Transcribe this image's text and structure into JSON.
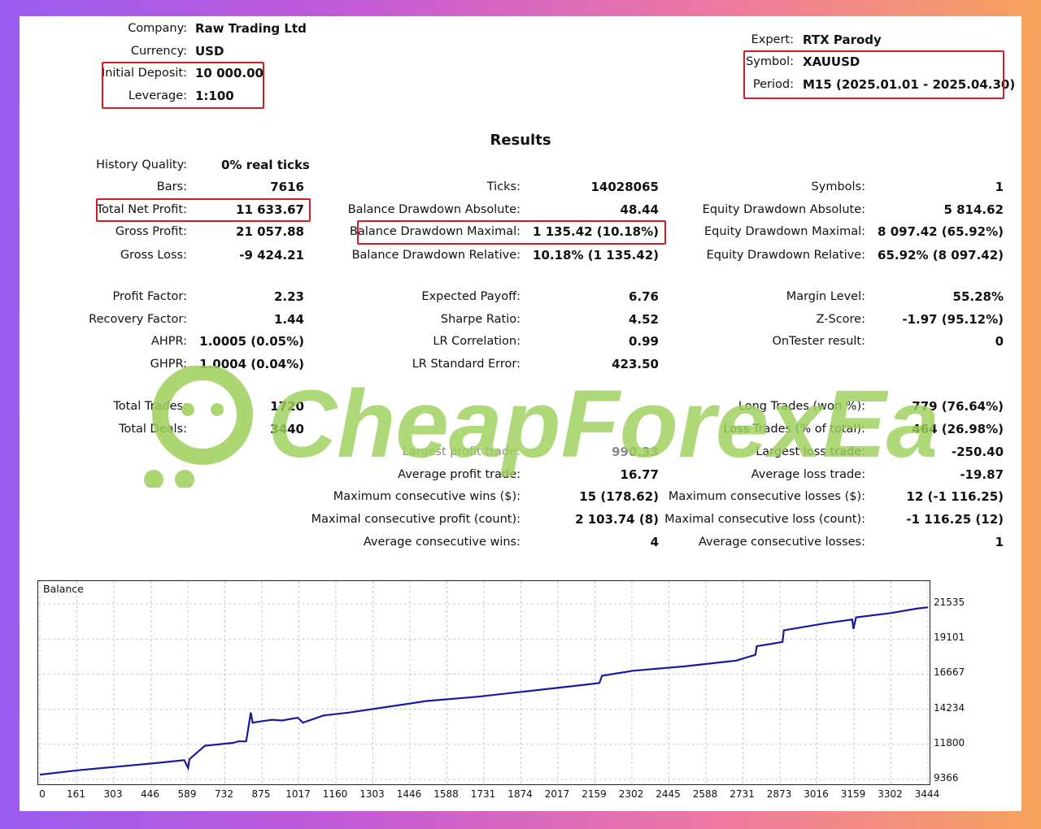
{
  "header": {
    "company_label": "Company:",
    "company": "Raw Trading Ltd",
    "currency_label": "Currency:",
    "currency": "USD",
    "deposit_label": "Initial Deposit:",
    "deposit": "10 000.00",
    "leverage_label": "Leverage:",
    "leverage": "1:100",
    "expert_label": "Expert:",
    "expert": "RTX Parody",
    "symbol_label": "Symbol:",
    "symbol": "XAUUSD",
    "period_label": "Period:",
    "period": "M15 (2025.01.01 - 2025.04.30)"
  },
  "results_title": "Results",
  "stats": {
    "history_quality_label": "History Quality:",
    "history_quality": "0% real ticks",
    "bars_label": "Bars:",
    "bars": "7616",
    "ticks_label": "Ticks:",
    "ticks": "14028065",
    "symbols_label": "Symbols:",
    "symbols": "1",
    "net_profit_label": "Total Net Profit:",
    "net_profit": "11 633.67",
    "bal_dd_abs_label": "Balance Drawdown Absolute:",
    "bal_dd_abs": "48.44",
    "eq_dd_abs_label": "Equity Drawdown Absolute:",
    "eq_dd_abs": "5 814.62",
    "gross_profit_label": "Gross Profit:",
    "gross_profit": "21 057.88",
    "bal_dd_max_label": "Balance Drawdown Maximal:",
    "bal_dd_max": "1 135.42 (10.18%)",
    "eq_dd_max_label": "Equity Drawdown Maximal:",
    "eq_dd_max": "8 097.42 (65.92%)",
    "gross_loss_label": "Gross Loss:",
    "gross_loss": "-9 424.21",
    "bal_dd_rel_label": "Balance Drawdown Relative:",
    "bal_dd_rel": "10.18% (1 135.42)",
    "eq_dd_rel_label": "Equity Drawdown Relative:",
    "eq_dd_rel": "65.92% (8 097.42)",
    "profit_factor_label": "Profit Factor:",
    "profit_factor": "2.23",
    "expected_payoff_label": "Expected Payoff:",
    "expected_payoff": "6.76",
    "margin_level_label": "Margin Level:",
    "margin_level": "55.28%",
    "recovery_factor_label": "Recovery Factor:",
    "recovery_factor": "1.44",
    "sharpe_label": "Sharpe Ratio:",
    "sharpe": "4.52",
    "zscore_label": "Z-Score:",
    "zscore": "-1.97 (95.12%)",
    "ahpr_label": "AHPR:",
    "ahpr": "1.0005 (0.05%)",
    "lr_corr_label": "LR Correlation:",
    "lr_corr": "0.99",
    "ontester_label": "OnTester result:",
    "ontester": "0",
    "ghpr_label": "GHPR:",
    "ghpr": "1.0004 (0.04%)",
    "lr_err_label": "LR Standard Error:",
    "lr_err": "423.50",
    "total_trades_label": "Total Trades:",
    "total_trades": "1720",
    "long_trades_label": "Long Trades (won %):",
    "long_trades": "779 (76.64%)",
    "total_deals_label": "Total Deals:",
    "total_deals": "3440",
    "loss_trades_label": "Loss Trades (% of total):",
    "loss_trades": "464 (26.98%)",
    "largest_profit_label": "Largest profit trade:",
    "largest_profit": "990.33",
    "largest_loss_label": "Largest loss trade:",
    "largest_loss": "-250.40",
    "avg_profit_label": "Average profit trade:",
    "avg_profit": "16.77",
    "avg_loss_label": "Average loss trade:",
    "avg_loss": "-19.87",
    "max_cons_wins_label": "Maximum consecutive wins ($):",
    "max_cons_wins": "15 (178.62)",
    "max_cons_losses_label": "Maximum consecutive losses ($):",
    "max_cons_losses": "12 (-1 116.25)",
    "maximal_cons_profit_label": "Maximal consecutive profit (count):",
    "maximal_cons_profit": "2 103.74 (8)",
    "maximal_cons_loss_label": "Maximal consecutive loss (count):",
    "maximal_cons_loss": "-1 116.25 (12)",
    "avg_cons_wins_label": "Average consecutive wins:",
    "avg_cons_wins": "4",
    "avg_cons_losses_label": "Average consecutive losses:",
    "avg_cons_losses": "1"
  },
  "watermark_text": "CheapForexEa",
  "colors": {
    "highlight": "#d01c24",
    "line": "#1a1a9c",
    "watermark": "#9ed05a",
    "grid": "#c8c8c8"
  },
  "chart_data": {
    "type": "line",
    "title": "Balance",
    "x_ticks": [
      "0",
      "161",
      "303",
      "446",
      "589",
      "732",
      "875",
      "1017",
      "1160",
      "1303",
      "1446",
      "1588",
      "1731",
      "1874",
      "2017",
      "2159",
      "2302",
      "2445",
      "2588",
      "2731",
      "2873",
      "3016",
      "3159",
      "3302",
      "3444"
    ],
    "y_ticks": [
      "21535",
      "19101",
      "16667",
      "14234",
      "11800",
      "9366"
    ],
    "xlim": [
      0,
      3444
    ],
    "ylim": [
      9366,
      21535
    ],
    "grid": true,
    "series": [
      {
        "x": [
          0,
          150,
          300,
          450,
          560,
          575,
          580,
          585,
          640,
          750,
          770,
          800,
          818,
          825,
          860,
          900,
          940,
          1000,
          1020,
          1100,
          1200,
          1350,
          1500,
          1700,
          1900,
          2100,
          2170,
          2180,
          2300,
          2500,
          2700,
          2775,
          2780,
          2850,
          2880,
          2885,
          3050,
          3150,
          3155,
          3165,
          3300,
          3400,
          3444
        ],
        "y": [
          9700,
          10000,
          10250,
          10500,
          10700,
          10150,
          10750,
          10850,
          11700,
          11900,
          12000,
          12000,
          14000,
          13300,
          13400,
          13500,
          13450,
          13650,
          13300,
          13800,
          14000,
          14400,
          14800,
          15100,
          15500,
          15900,
          16050,
          16550,
          16900,
          17200,
          17600,
          18000,
          18600,
          18800,
          18900,
          19700,
          20200,
          20450,
          19800,
          20600,
          20900,
          21200,
          21300
        ]
      }
    ]
  }
}
